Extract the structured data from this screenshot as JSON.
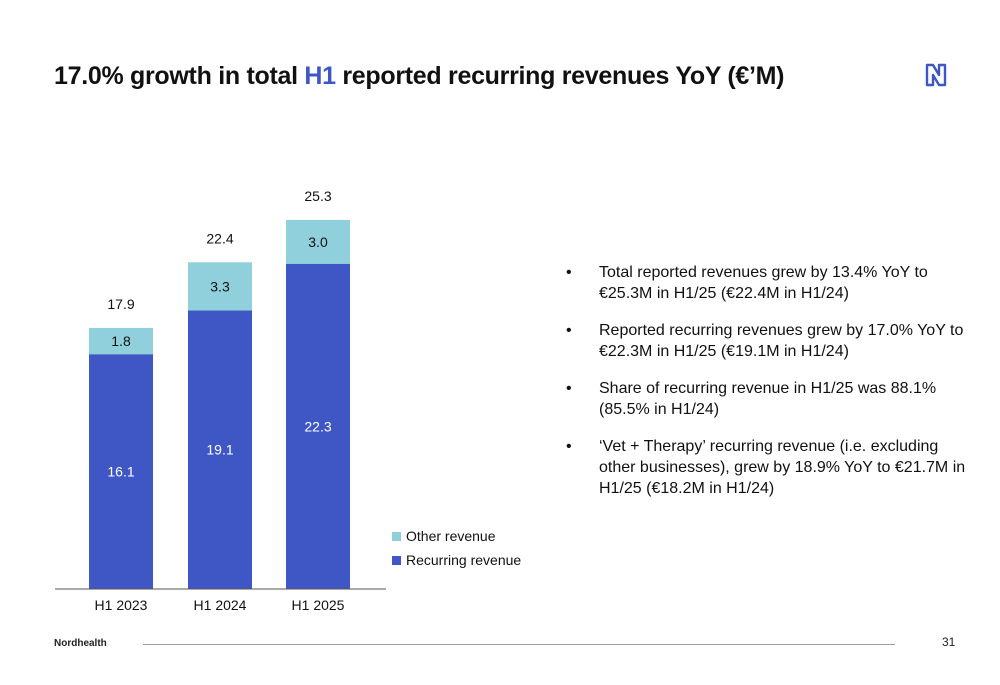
{
  "header": {
    "title_pre": "17.0% growth in total ",
    "title_highlight": "H1",
    "title_post": " reported recurring revenues YoY (€’M)",
    "logo_icon": "nordhealth-logo-icon"
  },
  "chart_data": {
    "type": "bar",
    "stacked": true,
    "categories": [
      "H1 2023",
      "H1 2024",
      "H1 2025"
    ],
    "series": [
      {
        "name": "Recurring revenue",
        "color": "#3f57c4",
        "values": [
          16.1,
          19.1,
          22.3
        ]
      },
      {
        "name": "Other revenue",
        "color": "#8fd0dc",
        "values": [
          1.8,
          3.3,
          3.0
        ]
      }
    ],
    "totals": [
      "17.9",
      "22.4",
      "25.3"
    ],
    "segment_labels": [
      [
        "16.1",
        "1.8"
      ],
      [
        "19.1",
        "3.3"
      ],
      [
        "22.3",
        "3.0"
      ]
    ],
    "ylim": [
      0,
      25.3
    ],
    "grid": false,
    "legend": {
      "position": "bottom-right",
      "entries": [
        {
          "label": "Other revenue",
          "color": "#8fd0dc"
        },
        {
          "label": "Recurring revenue",
          "color": "#3f57c4"
        }
      ]
    }
  },
  "bullets": [
    "Total reported revenues grew by 13.4% YoY to €25.3M in H1/25 (€22.4M in H1/24)",
    "Reported recurring revenues grew by 17.0% YoY to €22.3M in H1/25 (€19.1M in H1/24)",
    "Share of recurring revenue in H1/25 was 88.1% (85.5% in H1/24)",
    "‘Vet + Therapy’ recurring revenue (i.e. excluding other businesses), grew by 18.9% YoY to €21.7M in H1/25 (€18.2M in H1/24)"
  ],
  "footer": {
    "brand": "Nordhealth",
    "page_number": "31"
  }
}
